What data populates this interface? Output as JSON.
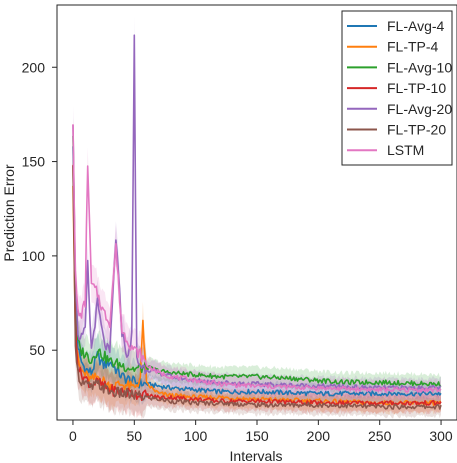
{
  "chart_data": {
    "type": "line",
    "xlabel": "Intervals",
    "ylabel": "Prediction Error",
    "xlim": [
      -13,
      313
    ],
    "ylim": [
      13,
      233
    ],
    "xticks": [
      0,
      50,
      100,
      150,
      200,
      250,
      300
    ],
    "yticks": [
      50,
      100,
      150,
      200
    ],
    "grid": false,
    "legend_position": "upper-right",
    "confidence_bands": true,
    "series": [
      {
        "name": "FL-Avg-4",
        "color": "#1f77b4",
        "x": [
          0,
          2,
          4,
          6,
          10,
          15,
          20,
          25,
          30,
          40,
          50,
          60,
          70,
          80,
          100,
          120,
          150,
          200,
          250,
          300
        ],
        "y": [
          160,
          75,
          52,
          45,
          40,
          38,
          47,
          42,
          44,
          36,
          33,
          32,
          31,
          30,
          29,
          28,
          28,
          27,
          27,
          27
        ]
      },
      {
        "name": "FL-TP-4",
        "color": "#ff7f0e",
        "x": [
          0,
          2,
          4,
          6,
          10,
          15,
          20,
          30,
          40,
          50,
          55,
          57,
          60,
          70,
          80,
          100,
          120,
          150,
          200,
          250,
          300
        ],
        "y": [
          140,
          60,
          45,
          40,
          37,
          34,
          36,
          31,
          32,
          30,
          35,
          65,
          32,
          27,
          26,
          25,
          25,
          24,
          23,
          22,
          22
        ]
      },
      {
        "name": "FL-Avg-10",
        "color": "#2ca02c",
        "x": [
          0,
          2,
          4,
          6,
          10,
          15,
          20,
          30,
          40,
          50,
          60,
          70,
          80,
          100,
          120,
          150,
          180,
          200,
          220,
          250,
          300
        ],
        "y": [
          165,
          80,
          55,
          50,
          48,
          45,
          50,
          44,
          42,
          40,
          41,
          39,
          38,
          37,
          36,
          36,
          35,
          34,
          33,
          33,
          32
        ]
      },
      {
        "name": "FL-TP-10",
        "color": "#d62728",
        "x": [
          0,
          2,
          4,
          6,
          10,
          15,
          20,
          30,
          40,
          50,
          60,
          70,
          80,
          100,
          120,
          150,
          200,
          250,
          300
        ],
        "y": [
          150,
          65,
          42,
          38,
          35,
          32,
          33,
          29,
          28,
          27,
          26,
          25,
          25,
          24,
          23,
          23,
          22,
          22,
          22
        ]
      },
      {
        "name": "FL-Avg-20",
        "color": "#9467bd",
        "x": [
          0,
          2,
          4,
          6,
          10,
          12,
          15,
          20,
          25,
          30,
          35,
          40,
          45,
          48,
          50,
          52,
          55,
          60,
          70,
          80,
          100,
          120,
          150,
          200,
          250,
          300
        ],
        "y": [
          172,
          85,
          60,
          55,
          60,
          95,
          50,
          75,
          55,
          48,
          110,
          60,
          45,
          60,
          215,
          45,
          42,
          40,
          38,
          36,
          34,
          33,
          32,
          31,
          30,
          30
        ]
      },
      {
        "name": "FL-TP-20",
        "color": "#8c564b",
        "x": [
          0,
          2,
          4,
          6,
          10,
          15,
          20,
          30,
          40,
          50,
          60,
          70,
          80,
          100,
          120,
          150,
          200,
          250,
          300
        ],
        "y": [
          145,
          55,
          38,
          34,
          32,
          30,
          32,
          28,
          27,
          26,
          25,
          24,
          23,
          22,
          22,
          21,
          21,
          20,
          20
        ]
      },
      {
        "name": "LSTM",
        "color": "#e377c2",
        "x": [
          0,
          2,
          4,
          6,
          10,
          12,
          15,
          20,
          25,
          30,
          35,
          40,
          45,
          50,
          55,
          60,
          70,
          80,
          100,
          120,
          150,
          200,
          250,
          300
        ],
        "y": [
          172,
          90,
          70,
          68,
          75,
          150,
          85,
          80,
          70,
          65,
          105,
          60,
          55,
          50,
          48,
          42,
          38,
          36,
          34,
          32,
          31,
          30,
          29,
          29
        ]
      }
    ]
  }
}
